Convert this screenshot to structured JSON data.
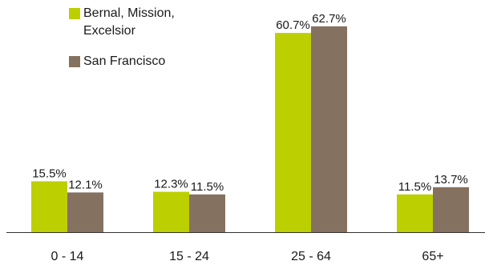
{
  "chart_data": {
    "type": "bar",
    "title": "",
    "xlabel": "",
    "ylabel": "",
    "ylim": [
      0,
      70
    ],
    "grid": false,
    "legend_position": "top-left",
    "categories": [
      "0 - 14",
      "15 - 24",
      "25 - 64",
      "65+"
    ],
    "series": [
      {
        "name": "Bernal, Mission, Excelsior",
        "color": "#bccf00",
        "values": [
          15.5,
          12.3,
          60.7,
          11.5
        ],
        "labels": [
          "15.5%",
          "12.3%",
          "60.7%",
          "11.5%"
        ]
      },
      {
        "name": "San Francisco",
        "color": "#85715f",
        "values": [
          12.1,
          11.5,
          62.7,
          13.7
        ],
        "labels": [
          "12.1%",
          "11.5%",
          "62.7%",
          "13.7%"
        ]
      }
    ]
  }
}
